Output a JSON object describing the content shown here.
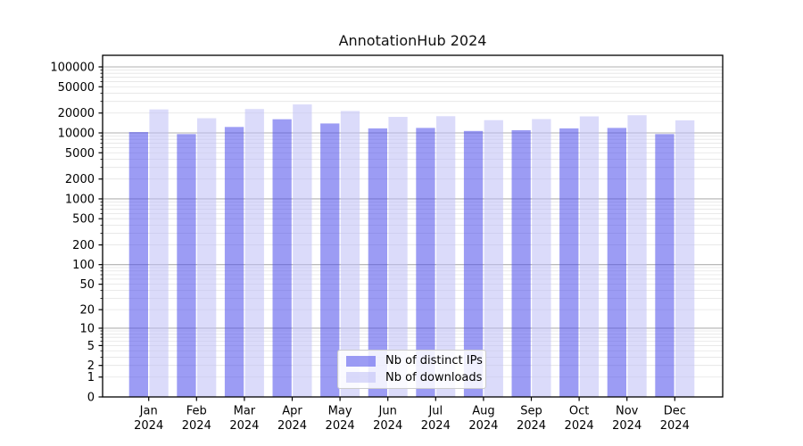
{
  "title": "AnnotationHub 2024",
  "legend": {
    "items": [
      {
        "label": "Nb of distinct IPs",
        "color": "rgba(75,75,235,0.55)",
        "apparent_color": "#9c9cf4"
      },
      {
        "label": "Nb of downloads",
        "color": "rgba(190,190,245,0.55)",
        "apparent_color": "#dbdbfa"
      }
    ]
  },
  "chart_data": {
    "type": "bar",
    "title": "AnnotationHub 2024",
    "categories": [
      "Jan 2024",
      "Feb 2024",
      "Mar 2024",
      "Apr 2024",
      "May 2024",
      "Jun 2024",
      "Jul 2024",
      "Aug 2024",
      "Sep 2024",
      "Oct 2024",
      "Nov 2024",
      "Dec 2024"
    ],
    "series": [
      {
        "name": "Nb of distinct IPs",
        "color": "rgba(75,75,235,0.55)",
        "values": [
          10300,
          9600,
          12300,
          16100,
          13900,
          11700,
          11900,
          10700,
          11000,
          11700,
          11900,
          9600
        ]
      },
      {
        "name": "Nb of downloads",
        "color": "rgba(190,190,245,0.55)",
        "values": [
          22700,
          16700,
          23000,
          27000,
          21500,
          17500,
          17900,
          15600,
          16200,
          17800,
          18500,
          15500
        ]
      }
    ],
    "xlabel": "",
    "ylabel": "",
    "yscale": "log1p",
    "ylim": [
      0,
      150000
    ],
    "ytick_values": [
      0,
      1,
      2,
      5,
      10,
      20,
      50,
      100,
      200,
      500,
      1000,
      2000,
      5000,
      10000,
      20000,
      50000,
      100000
    ],
    "grid": true,
    "legend_position": "lower center",
    "colors": {
      "major_grid": "#b0b0b0",
      "minor_grid": "#e4e4e4",
      "axis": "#000000",
      "text": "#000000"
    }
  }
}
